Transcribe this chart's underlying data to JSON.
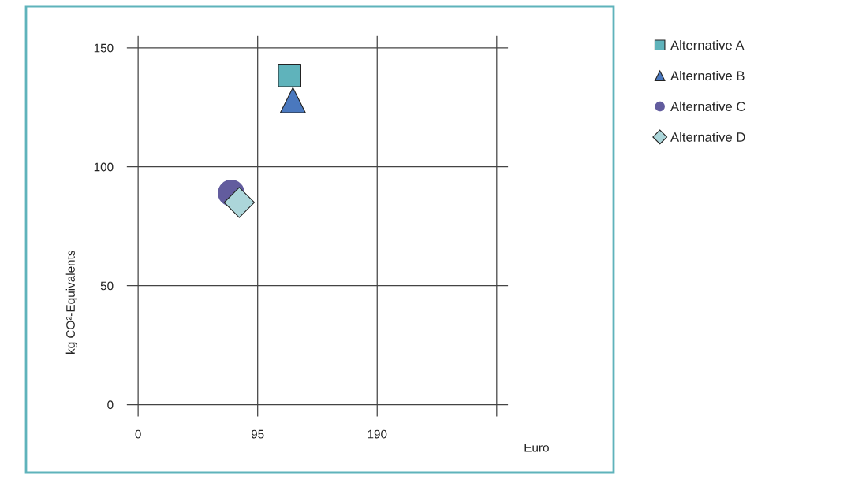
{
  "chart_data": {
    "type": "scatter",
    "xlabel": "Euro",
    "ylabel": "kg CO²-Equivalents",
    "xlim": [
      -9,
      294
    ],
    "ylim": [
      -5,
      155
    ],
    "xticks": [
      0,
      95,
      190,
      {
        "value": 285,
        "label": null
      }
    ],
    "yticks": [
      0,
      50,
      100,
      150
    ],
    "grid": true,
    "legend": "top right",
    "series": [
      {
        "name": "Alternative A",
        "color": "#5fb3bb",
        "marker": "square",
        "x": [
          120.4
        ],
        "values": [
          138.4
        ]
      },
      {
        "name": "Alternative B",
        "color": "#4a78be",
        "marker": "triangle",
        "x": [
          123
        ],
        "values": [
          128
        ]
      },
      {
        "name": "Alternative C",
        "color": "#625c9e",
        "marker": "circle",
        "x": [
          74
        ],
        "values": [
          89
        ]
      },
      {
        "name": "Alternative D",
        "color": "#acd6da",
        "marker": "diamond",
        "x": [
          80.4
        ],
        "values": [
          85
        ]
      }
    ]
  }
}
